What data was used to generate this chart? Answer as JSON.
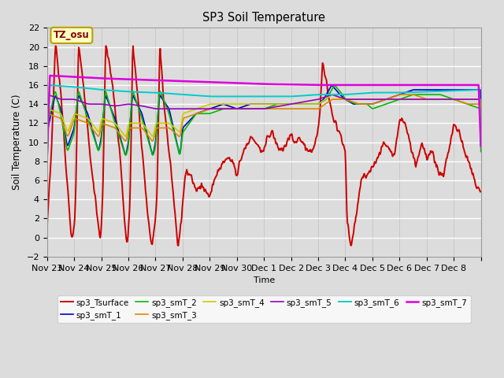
{
  "title": "SP3 Soil Temperature",
  "ylabel": "Soil Temperature (C)",
  "xlabel": "Time",
  "ylim": [
    -2,
    22
  ],
  "yticks": [
    -2,
    0,
    2,
    4,
    6,
    8,
    10,
    12,
    14,
    16,
    18,
    20,
    22
  ],
  "xtick_labels": [
    "Nov 23",
    "Nov 24",
    "Nov 25",
    "Nov 26",
    "Nov 27",
    "Nov 28",
    "Nov 29",
    "Nov 30",
    "Dec 1",
    "Dec 2",
    "Dec 3",
    "Dec 4",
    "Dec 5",
    "Dec 6",
    "Dec 7",
    "Dec 8"
  ],
  "bg_color": "#dcdcdc",
  "annotation_text": "TZ_osu",
  "annotation_bg": "#ffffc0",
  "annotation_border": "#b8a000",
  "legend_entries": [
    {
      "label": "sp3_Tsurface",
      "color": "#cc0000",
      "lw": 1.4
    },
    {
      "label": "sp3_smT_1",
      "color": "#0000cc",
      "lw": 1.2
    },
    {
      "label": "sp3_smT_2",
      "color": "#00bb00",
      "lw": 1.2
    },
    {
      "label": "sp3_smT_3",
      "color": "#dd8800",
      "lw": 1.2
    },
    {
      "label": "sp3_smT_4",
      "color": "#cccc00",
      "lw": 1.2
    },
    {
      "label": "sp3_smT_5",
      "color": "#9900bb",
      "lw": 1.2
    },
    {
      "label": "sp3_smT_6",
      "color": "#00cccc",
      "lw": 1.4
    },
    {
      "label": "sp3_smT_7",
      "color": "#dd00dd",
      "lw": 1.8
    }
  ]
}
